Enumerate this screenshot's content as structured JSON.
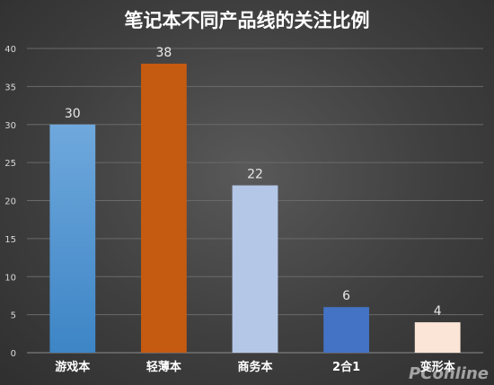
{
  "chart_data": {
    "type": "bar",
    "title": "笔记本不同产品线的关注比例",
    "categories": [
      "游戏本",
      "轻薄本",
      "商务本",
      "2合1",
      "变形本"
    ],
    "values": [
      30,
      38,
      22,
      6,
      4
    ],
    "data_labels": [
      "30",
      "38",
      "22",
      "6",
      "4"
    ],
    "bar_colors": [
      "#5b9bd5",
      "#c55a11",
      "#b4c7e7",
      "#4472c4",
      "#fbe5d6"
    ],
    "ylim": [
      0,
      40
    ],
    "yticks": [
      0,
      5,
      10,
      15,
      20,
      25,
      30,
      35,
      40
    ],
    "grid": true,
    "legend": "none"
  },
  "watermark": "PConline"
}
